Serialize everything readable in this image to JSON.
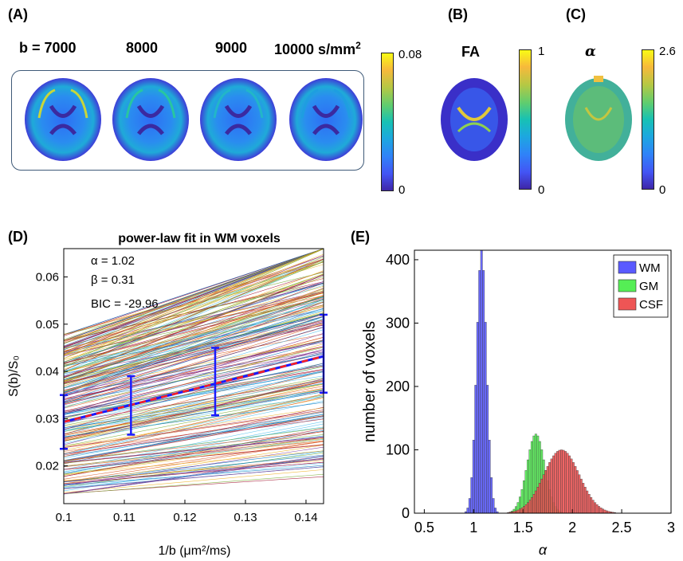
{
  "panelA": {
    "letter": "(A)",
    "labels": [
      "b = 7000",
      "8000",
      "9000",
      "10000 s/mm"
    ],
    "unit_exp": "2",
    "colorbar": {
      "max": "0.08",
      "min": "0"
    }
  },
  "panelB": {
    "letter": "(B)",
    "title": "FA",
    "colorbar": {
      "max": "1",
      "min": "0"
    }
  },
  "panelC": {
    "letter": "(C)",
    "title": "α",
    "colorbar": {
      "max": "2.6",
      "min": "0"
    }
  },
  "panelD": {
    "letter": "(D)",
    "chart_data": {
      "type": "line",
      "title": "power-law fit in WM voxels",
      "annotations": [
        "α = 1.02",
        "β = 0.31",
        "BIC = -29.96"
      ],
      "xlabel": "1/b (μm²/ms)",
      "ylabel": "S(b)/S₀",
      "xlim": [
        0.1,
        0.1429
      ],
      "ylim": [
        0.012,
        0.066
      ],
      "x_ticks": [
        "0.1",
        "0.11",
        "0.12",
        "0.13",
        "0.14"
      ],
      "y_ticks": [
        "0.02",
        "0.03",
        "0.04",
        "0.05",
        "0.06"
      ],
      "mean_fit": {
        "x": [
          0.1,
          0.1429
        ],
        "y": [
          0.0293,
          0.0432
        ]
      },
      "error_bars": [
        {
          "x": 0.1,
          "mean": 0.0292,
          "low": 0.0236,
          "high": 0.035
        },
        {
          "x": 0.1111,
          "mean": 0.0328,
          "low": 0.0266,
          "high": 0.039
        },
        {
          "x": 0.125,
          "mean": 0.0377,
          "low": 0.0307,
          "high": 0.045
        },
        {
          "x": 0.1429,
          "mean": 0.0435,
          "low": 0.0355,
          "high": 0.052
        }
      ],
      "grid": false
    }
  },
  "panelE": {
    "letter": "(E)",
    "chart_data": {
      "type": "bar",
      "xlabel": "α",
      "ylabel": "number of voxels",
      "xlim": [
        0.4,
        3.0
      ],
      "ylim": [
        0,
        415
      ],
      "x_ticks": [
        "0.5",
        "1",
        "1.5",
        "2",
        "2.5",
        "3"
      ],
      "y_ticks": [
        "0",
        "100",
        "200",
        "300",
        "400"
      ],
      "legend_position": "top-right",
      "series": [
        {
          "name": "WM",
          "color": "#5a5aff",
          "center": 1.07,
          "sd": 0.05,
          "peak": 415
        },
        {
          "name": "GM",
          "color": "#55ee55",
          "center": 1.62,
          "sd": 0.09,
          "peak": 125
        },
        {
          "name": "CSF",
          "color": "#ee5555",
          "center": 1.88,
          "sd": 0.18,
          "peak": 100
        }
      ],
      "grid": false
    }
  }
}
